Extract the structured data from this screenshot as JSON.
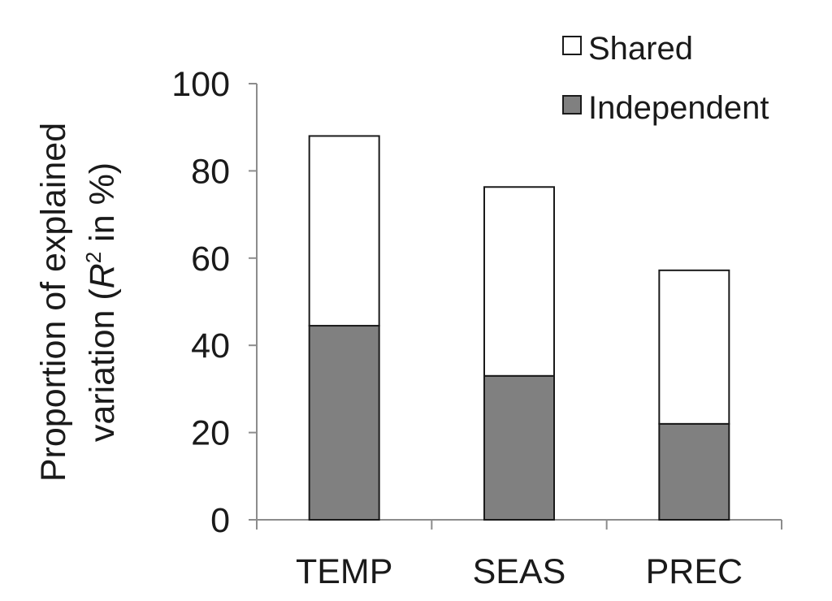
{
  "chart_data": {
    "type": "bar",
    "stacked": true,
    "categories": [
      "TEMP",
      "SEAS",
      "PREC"
    ],
    "series": [
      {
        "name": "Independent",
        "values": [
          44.5,
          33.0,
          22.0
        ],
        "color": "#808080"
      },
      {
        "name": "Shared",
        "values": [
          43.5,
          43.3,
          35.2
        ],
        "color": "#ffffff"
      }
    ],
    "ylabel_line1": "Proportion of explained",
    "ylabel_line2_prefix": "variation (",
    "ylabel_var": "R",
    "ylabel_sup": "2",
    "ylabel_line2_suffix": " in %)",
    "ylim": [
      0,
      100
    ],
    "yticks": [
      "0",
      "20",
      "40",
      "60",
      "80",
      "100"
    ],
    "legend_order": [
      "Shared",
      "Independent"
    ],
    "legend_placement": "top-right",
    "grid": false
  }
}
